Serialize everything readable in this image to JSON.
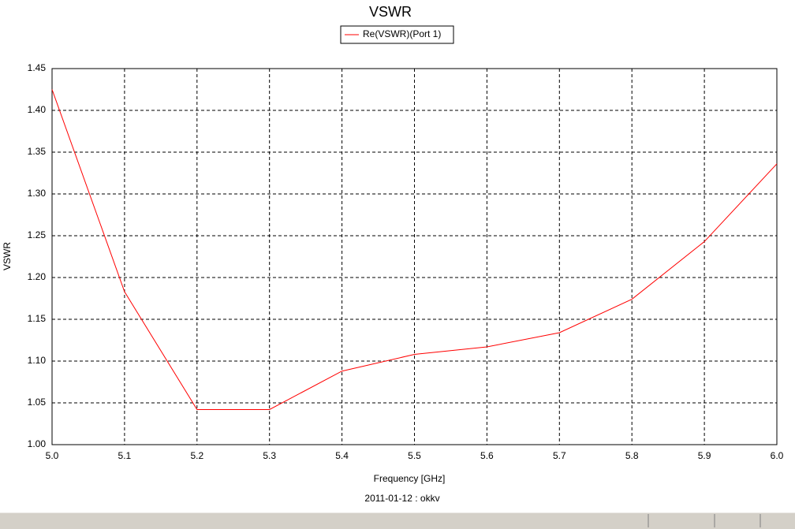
{
  "chart_data": {
    "type": "line",
    "title": "VSWR",
    "xlabel": "Frequency [GHz]",
    "ylabel": "VSWR",
    "footer": "2011-01-12 : okkv",
    "x": [
      5.0,
      5.1,
      5.2,
      5.3,
      5.4,
      5.5,
      5.6,
      5.7,
      5.8,
      5.9,
      6.0
    ],
    "series": [
      {
        "name": "Re(VSWR)(Port 1)",
        "color": "#ff0000",
        "values": [
          1.425,
          1.183,
          1.042,
          1.042,
          1.088,
          1.108,
          1.117,
          1.134,
          1.174,
          1.243,
          1.336
        ]
      }
    ],
    "xlim": [
      5.0,
      6.0
    ],
    "xticks": [
      {
        "value": 5.0,
        "label": "5.0"
      },
      5.1,
      5.2,
      5.3,
      5.4,
      5.5,
      5.6,
      5.7,
      5.8,
      5.9,
      {
        "value": 6.0,
        "label": "6.0"
      }
    ],
    "ylim": [
      1.0,
      1.45
    ],
    "yticks": [
      {
        "value": 1.0,
        "label": "1.00"
      },
      1.05,
      {
        "value": 1.1,
        "label": "1.10"
      },
      1.15,
      {
        "value": 1.2,
        "label": "1.20"
      },
      1.25,
      {
        "value": 1.3,
        "label": "1.30"
      },
      1.35,
      {
        "value": 1.4,
        "label": "1.40"
      },
      1.45
    ],
    "grid": true,
    "legend": "top"
  }
}
